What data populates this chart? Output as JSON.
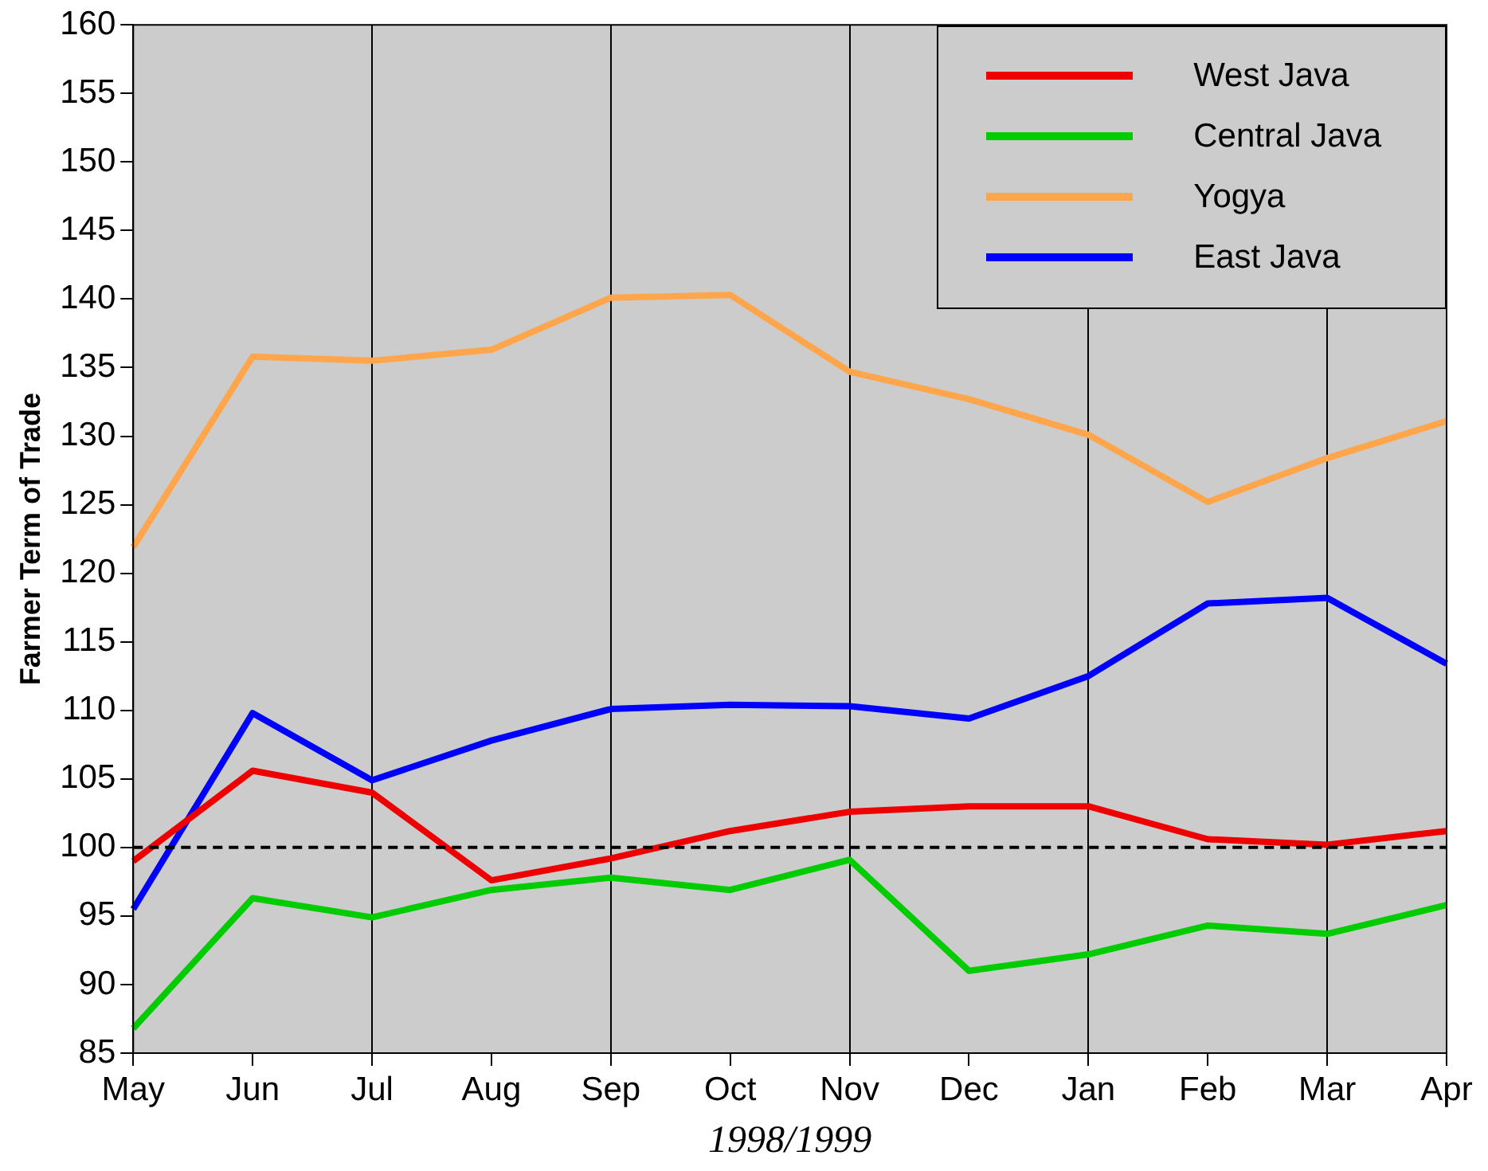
{
  "chart_data": {
    "type": "line",
    "xlabel": "1998/1999",
    "ylabel": "Farmer Term of Trade",
    "categories": [
      "May",
      "Jun",
      "Jul",
      "Aug",
      "Sep",
      "Oct",
      "Nov",
      "Dec",
      "Jan",
      "Feb",
      "Mar",
      "Apr"
    ],
    "series": [
      {
        "name": "West Java",
        "color": "#ee0000",
        "values": [
          99.0,
          105.6,
          104.0,
          97.6,
          99.2,
          101.2,
          102.6,
          103.0,
          103.0,
          100.6,
          100.2,
          101.2
        ]
      },
      {
        "name": "Central Java",
        "color": "#00cc00",
        "values": [
          86.8,
          96.3,
          94.9,
          96.9,
          97.8,
          96.9,
          99.1,
          91.0,
          92.2,
          94.3,
          93.7,
          95.8
        ]
      },
      {
        "name": "Yogya",
        "color": "#ffa64d",
        "values": [
          121.9,
          135.8,
          135.5,
          136.3,
          140.1,
          140.3,
          134.7,
          132.7,
          130.1,
          125.2,
          128.4,
          131.1
        ]
      },
      {
        "name": "East Java",
        "color": "#0000ff",
        "values": [
          95.5,
          109.8,
          104.9,
          107.8,
          110.1,
          110.4,
          110.3,
          109.4,
          112.5,
          117.8,
          118.2,
          113.4
        ]
      }
    ],
    "ylim": [
      85,
      160
    ],
    "yticks": [
      85,
      90,
      95,
      100,
      105,
      110,
      115,
      120,
      125,
      130,
      135,
      140,
      145,
      150,
      155,
      160
    ],
    "grid": "x",
    "legend": "top right",
    "line_style": "solid",
    "marker": "none",
    "ref_lines": [
      {
        "axis": "y",
        "value": 100,
        "color": "#000000",
        "line_style": "dashed"
      }
    ]
  }
}
